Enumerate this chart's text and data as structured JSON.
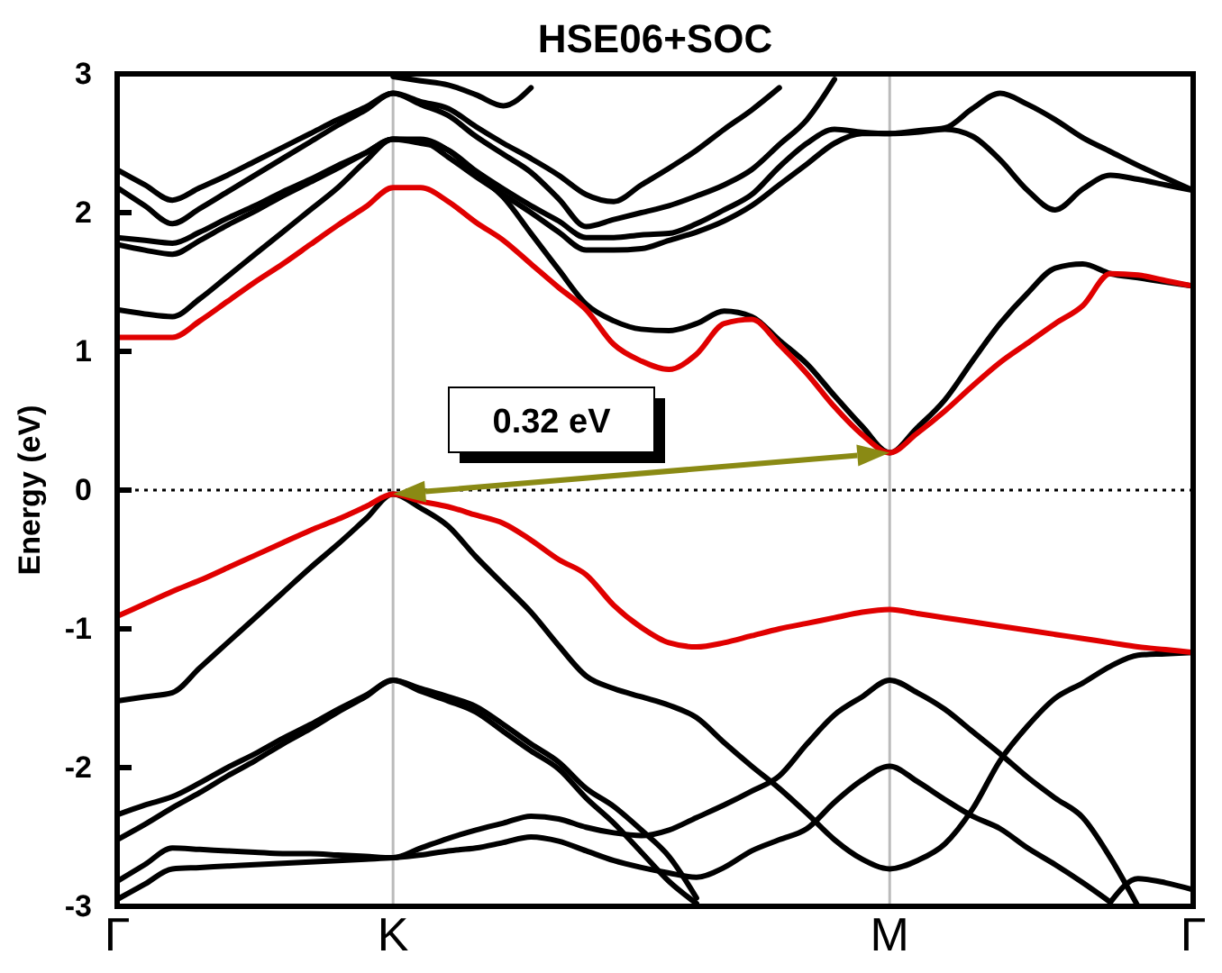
{
  "chart_data": {
    "type": "line",
    "title": "HSE06+SOC",
    "ylabel": "Energy (eV)",
    "categories": [
      "Γ",
      null,
      null,
      null,
      null,
      null,
      null,
      null,
      null,
      null,
      "K",
      null,
      null,
      null,
      null,
      null,
      null,
      null,
      null,
      null,
      null,
      null,
      null,
      null,
      null,
      null,
      null,
      null,
      "M",
      null,
      null,
      null,
      null,
      null,
      null,
      null,
      null,
      null,
      null,
      "Γ"
    ],
    "ylim": [
      -3,
      3
    ],
    "yticks": [
      -3,
      -2,
      -1,
      0,
      1,
      2,
      3
    ],
    "grid": "x",
    "line_style": "solid",
    "ref_lines": [
      {
        "axis": "y",
        "value": 0,
        "line_style": "dotted",
        "color": "#000000"
      }
    ],
    "annotations": [
      "0.32 eV"
    ],
    "series": [
      {
        "color": "#000000",
        "values": [
          1.3,
          1.27,
          1.25,
          1.38,
          1.54,
          1.7,
          1.86,
          2.02,
          2.18,
          2.37,
          2.53,
          2.53,
          2.45,
          2.28,
          2.11,
          1.85,
          1.59,
          1.34,
          1.22,
          1.16,
          1.15,
          1.2,
          1.29,
          1.25,
          1.08,
          0.91,
          0.68,
          0.46,
          0.27,
          0.45,
          0.65,
          0.93,
          1.2,
          1.42,
          1.6,
          1.63,
          1.56,
          1.53,
          1.5,
          1.47
        ]
      },
      {
        "color": "#000000",
        "values": [
          1.82,
          1.8,
          1.78,
          1.86,
          1.96,
          2.05,
          2.15,
          2.24,
          2.34,
          2.43,
          2.53,
          2.52,
          2.4,
          2.26,
          2.13,
          2.0,
          1.86,
          1.73,
          1.73,
          1.74,
          1.8,
          1.86,
          1.94,
          2.05,
          2.2,
          2.35,
          2.5,
          2.57,
          2.57,
          2.58,
          2.6,
          2.55,
          2.38,
          2.16,
          2.02,
          2.17,
          2.27,
          2.24,
          2.2,
          2.16
        ]
      },
      {
        "color": "#000000",
        "values": [
          1.77,
          1.73,
          1.7,
          1.8,
          1.91,
          2.01,
          2.12,
          2.22,
          2.32,
          2.43,
          2.53,
          2.5,
          2.45,
          2.3,
          2.17,
          2.05,
          1.94,
          1.82,
          1.82,
          1.84,
          1.85,
          1.92,
          2.02,
          2.13,
          2.33,
          2.5,
          2.6,
          2.58,
          2.57,
          2.59,
          2.61,
          2.75,
          2.86,
          2.78,
          2.67,
          2.54,
          2.44,
          2.34,
          2.25,
          2.16
        ]
      },
      {
        "color": "#000000",
        "values": [
          2.31,
          2.2,
          2.09,
          2.18,
          2.27,
          2.37,
          2.47,
          2.57,
          2.67,
          2.76,
          2.86,
          2.78,
          2.7,
          2.55,
          2.42,
          2.29,
          2.1,
          1.9,
          1.95,
          2.0,
          2.05,
          2.12,
          2.2,
          2.31,
          2.49,
          2.67,
          2.96,
          null,
          null,
          null,
          null,
          null,
          null,
          null,
          null,
          null,
          null,
          null,
          null,
          null
        ]
      },
      {
        "color": "#000000",
        "values": [
          2.18,
          2.05,
          1.92,
          2.03,
          2.15,
          2.27,
          2.39,
          2.51,
          2.63,
          2.74,
          2.86,
          2.8,
          2.75,
          2.62,
          2.5,
          2.39,
          2.27,
          2.13,
          2.08,
          2.2,
          2.32,
          2.45,
          2.6,
          2.74,
          2.9,
          null,
          null,
          null,
          null,
          null,
          null,
          null,
          null,
          null,
          null,
          null,
          null,
          null,
          null,
          null
        ]
      },
      {
        "color": "#000000",
        "values": [
          null,
          null,
          null,
          null,
          null,
          null,
          null,
          null,
          null,
          null,
          2.98,
          2.95,
          2.92,
          2.85,
          2.77,
          2.9,
          null,
          null,
          null,
          null,
          null,
          null,
          null,
          null,
          null,
          null,
          null,
          null,
          null,
          null,
          null,
          null,
          null,
          null,
          null,
          null,
          null,
          null,
          null,
          null
        ]
      },
      {
        "color": "#000000",
        "values": [
          -1.52,
          -1.49,
          -1.46,
          -1.28,
          -1.1,
          -0.92,
          -0.74,
          -0.56,
          -0.39,
          -0.21,
          -0.03,
          -0.13,
          -0.26,
          -0.48,
          -0.68,
          -0.88,
          -1.12,
          -1.34,
          -1.43,
          -1.49,
          -1.55,
          -1.64,
          -1.82,
          -1.99,
          -2.15,
          -2.33,
          -2.52,
          -2.66,
          -2.73,
          -2.67,
          -2.55,
          -2.3,
          -1.95,
          -1.7,
          -1.5,
          -1.39,
          -1.27,
          -1.19,
          -1.18,
          -1.17
        ]
      },
      {
        "color": "#000000",
        "values": [
          -2.34,
          -2.27,
          -2.21,
          -2.11,
          -2.0,
          -1.9,
          -1.79,
          -1.69,
          -1.58,
          -1.48,
          -1.37,
          -1.43,
          -1.49,
          -1.56,
          -1.69,
          -1.83,
          -1.96,
          -2.15,
          -2.28,
          -2.45,
          -2.64,
          -2.94,
          null,
          null,
          null,
          null,
          null,
          null,
          null,
          null,
          null,
          null,
          null,
          null,
          null,
          null,
          null,
          null,
          null,
          null
        ]
      },
      {
        "color": "#000000",
        "values": [
          -2.52,
          -2.41,
          -2.29,
          -2.18,
          -2.06,
          -1.95,
          -1.83,
          -1.72,
          -1.6,
          -1.49,
          -1.37,
          -1.45,
          -1.52,
          -1.6,
          -1.74,
          -1.88,
          -2.01,
          -2.22,
          -2.4,
          -2.61,
          -2.82,
          -2.98,
          null,
          null,
          null,
          null,
          null,
          null,
          null,
          null,
          null,
          null,
          null,
          null,
          null,
          null,
          null,
          null,
          null,
          null
        ]
      },
      {
        "color": "#000000",
        "values": [
          -2.82,
          -2.7,
          -2.58,
          -2.59,
          -2.6,
          -2.61,
          -2.62,
          -2.62,
          -2.63,
          -2.64,
          -2.65,
          -2.58,
          -2.51,
          -2.45,
          -2.4,
          -2.35,
          -2.37,
          -2.43,
          -2.47,
          -2.49,
          -2.45,
          -2.36,
          -2.27,
          -2.17,
          -2.06,
          -1.83,
          -1.62,
          -1.49,
          -1.37,
          -1.46,
          -1.58,
          -1.74,
          -1.9,
          -2.07,
          -2.22,
          -2.36,
          -2.65,
          -3.0,
          null,
          null
        ]
      },
      {
        "color": "#000000",
        "values": [
          -2.95,
          -2.84,
          -2.73,
          -2.72,
          -2.71,
          -2.7,
          -2.69,
          -2.68,
          -2.67,
          -2.66,
          -2.65,
          -2.63,
          -2.6,
          -2.58,
          -2.54,
          -2.5,
          -2.53,
          -2.6,
          -2.67,
          -2.72,
          -2.76,
          -2.79,
          -2.72,
          -2.6,
          -2.52,
          -2.44,
          -2.25,
          -2.09,
          -1.99,
          -2.1,
          -2.23,
          -2.35,
          -2.44,
          -2.58,
          -2.7,
          -2.83,
          -2.97,
          null,
          null,
          null
        ]
      },
      {
        "color": "#000000",
        "values": [
          null,
          null,
          null,
          null,
          null,
          null,
          null,
          null,
          null,
          null,
          null,
          null,
          null,
          null,
          null,
          null,
          null,
          null,
          null,
          null,
          null,
          null,
          null,
          null,
          null,
          null,
          null,
          null,
          null,
          null,
          null,
          null,
          null,
          null,
          null,
          null,
          -2.97,
          -2.8,
          -2.83,
          -2.88
        ]
      },
      {
        "color": "#e00000",
        "values": [
          1.1,
          1.1,
          1.1,
          1.22,
          1.36,
          1.5,
          1.63,
          1.77,
          1.91,
          2.04,
          2.18,
          2.18,
          2.08,
          1.93,
          1.8,
          1.63,
          1.46,
          1.3,
          1.05,
          0.93,
          0.87,
          0.98,
          1.2,
          1.23,
          1.05,
          0.84,
          0.6,
          0.4,
          0.27,
          0.41,
          0.57,
          0.75,
          0.92,
          1.06,
          1.2,
          1.33,
          1.56,
          1.55,
          1.51,
          1.47
        ]
      },
      {
        "color": "#e00000",
        "values": [
          -0.91,
          -0.82,
          -0.73,
          -0.65,
          -0.56,
          -0.47,
          -0.38,
          -0.29,
          -0.21,
          -0.12,
          -0.03,
          -0.08,
          -0.12,
          -0.18,
          -0.24,
          -0.36,
          -0.5,
          -0.61,
          -0.83,
          -0.99,
          -1.1,
          -1.13,
          -1.1,
          -1.05,
          -1.0,
          -0.96,
          -0.92,
          -0.88,
          -0.86,
          -0.89,
          -0.92,
          -0.95,
          -0.98,
          -1.01,
          -1.04,
          -1.07,
          -1.1,
          -1.13,
          -1.15,
          -1.17
        ]
      }
    ]
  }
}
